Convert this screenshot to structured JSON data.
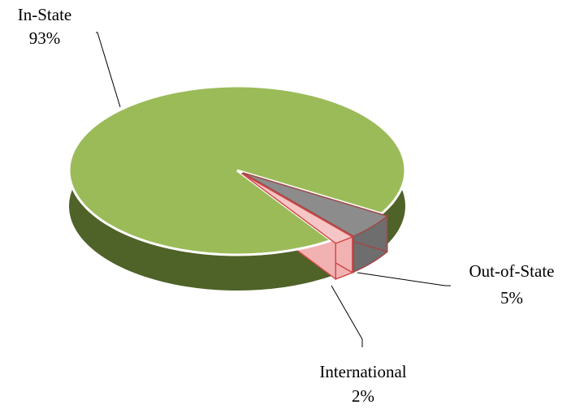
{
  "chart_data": {
    "type": "pie",
    "categories": [
      "In-State",
      "Out-of-State",
      "International"
    ],
    "values": [
      93,
      5,
      2
    ],
    "value_labels": [
      "93%",
      "5%",
      "2%"
    ],
    "colors": [
      "#9bbb59",
      "#8c8c8c",
      "#f6c6c6"
    ]
  }
}
